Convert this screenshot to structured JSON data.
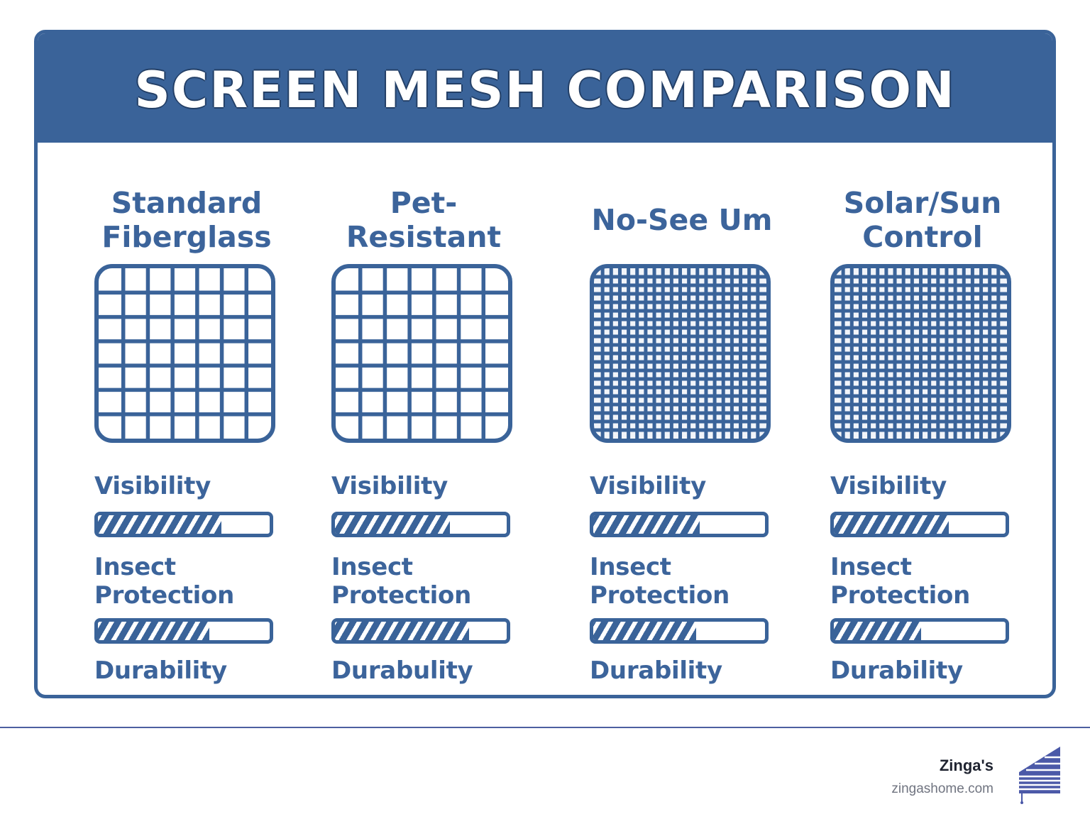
{
  "title": "SCREEN MESH COMPARISON",
  "columns": [
    {
      "name": "Standard\nFiberglass",
      "mesh_cells": 7,
      "labels": {
        "visibility": "Visibility",
        "insect": "Insect\nProtection",
        "durability": "Durability"
      },
      "visibility": 0.72,
      "insect_protection": 0.65
    },
    {
      "name": "Pet-\nResistant",
      "mesh_cells": 7,
      "labels": {
        "visibility": "Visibility",
        "insect": "Insect\nProtection",
        "durability": "Durabulity"
      },
      "visibility": 0.67,
      "insect_protection": 0.78
    },
    {
      "name": "No-See Um",
      "mesh_cells": 20,
      "labels": {
        "visibility": "Visibility",
        "insect": "Insect\nProtection",
        "durability": "Durability"
      },
      "visibility": 0.62,
      "insect_protection": 0.6
    },
    {
      "name": "Solar/Sun\nControl",
      "mesh_cells": 20,
      "labels": {
        "visibility": "Visibility",
        "insect": "Insect\nProtection",
        "durability": "Durability"
      },
      "visibility": 0.67,
      "insect_protection": 0.51
    }
  ],
  "footer": {
    "brand": "Zinga's",
    "url": "zingashome.com"
  },
  "colors": {
    "primary": "#3a6399",
    "text": "#3c649b"
  }
}
